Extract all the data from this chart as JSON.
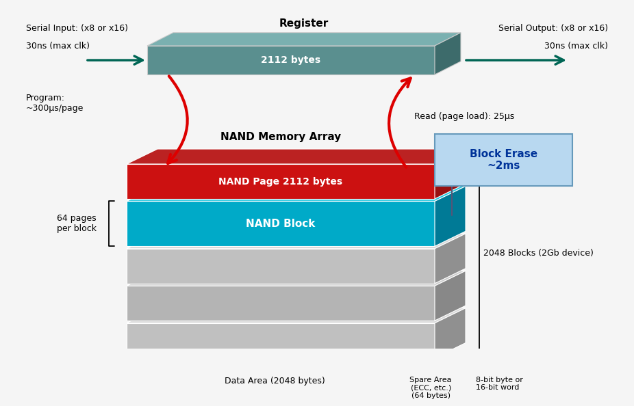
{
  "bg_color": "#f5f5f5",
  "register_color": "#5a8f8f",
  "register_side_color": "#3d6b6b",
  "register_top_color": "#7ab0b0",
  "register_text": "2112 bytes",
  "register_label": "Register",
  "nand_page_face_color": "#cc1111",
  "nand_page_side_color": "#991111",
  "nand_page_top_color": "#bb2222",
  "nand_page_text": "NAND Page 2112 bytes",
  "nand_block_face_color": "#00aac8",
  "nand_block_side_color": "#007a96",
  "nand_block_top_color": "#22c8e0",
  "nand_block_text": "NAND Block",
  "nand_memory_label": "NAND Memory Array",
  "gray_face": "#c0c0c0",
  "gray_side": "#909090",
  "gray_top": "#d8d8d8",
  "gray2_face": "#b4b4b4",
  "gray2_side": "#888888",
  "gray2_top": "#cccccc",
  "block_erase_bg": "#b8d8f0",
  "block_erase_border": "#6699bb",
  "block_erase_text": "Block Erase\n~2ms",
  "serial_input": "Serial Input: (x8 or x16)",
  "serial_output": "Serial Output: (x8 or x16)",
  "clk_left": "30ns (max clk)",
  "clk_right": "30ns (max clk)",
  "program_label": "Program:\n~300μs/page",
  "read_label": "Read (page load): 25μs",
  "pages_per_block": "64 pages\nper block",
  "blocks_count": "2048 Blocks (2Gb device)",
  "data_area": "Data Area (2048 bytes)",
  "spare_area": "Spare Area\n(ECC, etc.)\n(64 bytes)",
  "bit_label": "8-bit byte or\n16-bit word",
  "arrow_red": "#dd0000",
  "arrow_teal": "#006655"
}
